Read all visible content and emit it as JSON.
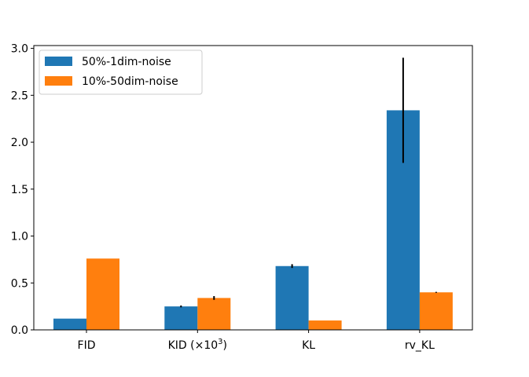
{
  "chart_data": {
    "type": "bar",
    "title": "",
    "xlabel": "",
    "ylabel": "",
    "categories": [
      "FID",
      "KID (×10³)",
      "KL",
      "rv_KL"
    ],
    "category_display": [
      {
        "base": "FID",
        "sup": "",
        "tail": ""
      },
      {
        "base": "KID (×10",
        "sup": "3",
        "tail": ")"
      },
      {
        "base": "KL",
        "sup": "",
        "tail": ""
      },
      {
        "base": "rv_KL",
        "sup": "",
        "tail": ""
      }
    ],
    "series": [
      {
        "name": "50%-1dim-noise",
        "color": "#1f77b4",
        "values": [
          0.12,
          0.25,
          0.68,
          2.34
        ],
        "errors": [
          0.0,
          0.01,
          0.02,
          0.56
        ]
      },
      {
        "name": "10%-50dim-noise",
        "color": "#ff7f0e",
        "values": [
          0.76,
          0.34,
          0.1,
          0.4
        ],
        "errors": [
          0.0,
          0.02,
          0.0,
          0.005
        ]
      }
    ],
    "yticks": [
      "0.0",
      "0.5",
      "1.0",
      "1.5",
      "2.0",
      "2.5",
      "3.0"
    ],
    "ylim": [
      0.0,
      3.03
    ],
    "legend": "top-left"
  }
}
